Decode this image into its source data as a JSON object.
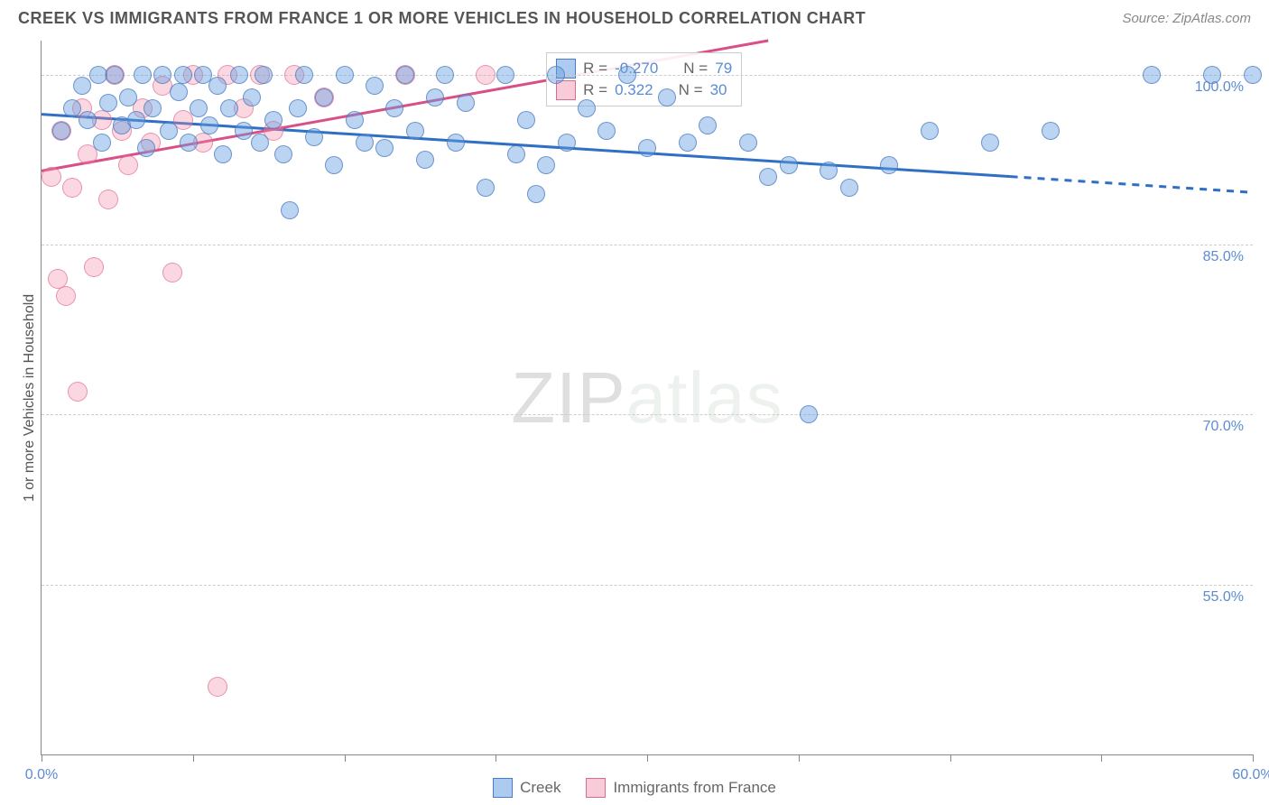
{
  "header": {
    "title": "CREEK VS IMMIGRANTS FROM FRANCE 1 OR MORE VEHICLES IN HOUSEHOLD CORRELATION CHART",
    "source": "Source: ZipAtlas.com"
  },
  "watermark": {
    "bold": "ZIP",
    "light": "atlas"
  },
  "axes": {
    "ylabel": "1 or more Vehicles in Household",
    "ylim": [
      40,
      103
    ],
    "y_ticks": [
      55.0,
      70.0,
      85.0,
      100.0
    ],
    "y_tick_labels": [
      "55.0%",
      "70.0%",
      "85.0%",
      "100.0%"
    ],
    "xlim": [
      0,
      60
    ],
    "x_ticks": [
      0,
      7.5,
      15,
      22.5,
      30,
      37.5,
      45,
      52.5,
      60
    ],
    "x_labels": [
      {
        "x": 0,
        "t": "0.0%"
      },
      {
        "x": 60,
        "t": "60.0%"
      }
    ]
  },
  "stats_legend": {
    "rows": [
      {
        "swatch": "blue",
        "r_label": "R =",
        "r": "-0.270",
        "n_label": "N =",
        "n": "79"
      },
      {
        "swatch": "pink",
        "r_label": "R =",
        "r": " 0.322",
        "n_label": "N =",
        "n": "30"
      }
    ]
  },
  "series_legend": {
    "items": [
      {
        "swatch": "blue",
        "label": "Creek"
      },
      {
        "swatch": "pink",
        "label": "Immigrants from France"
      }
    ]
  },
  "colors": {
    "blue_line": "#2f6fc4",
    "pink_line": "#d94f87",
    "grid": "#cccccc",
    "axis": "#888888",
    "tick_text": "#5b8bd4"
  },
  "lines": {
    "blue": {
      "x1": 0,
      "y1": 96.5,
      "x2": 48,
      "y2": 91.0,
      "x_dash_end": 60,
      "y_dash_end": 89.6
    },
    "pink": {
      "x1": 0,
      "y1": 91.5,
      "x2": 36,
      "y2": 103.0
    }
  },
  "series": {
    "creek": {
      "color": "blue",
      "marker_r": 10,
      "points": [
        [
          1,
          95
        ],
        [
          1.5,
          97
        ],
        [
          2,
          99
        ],
        [
          2.3,
          96
        ],
        [
          2.8,
          100
        ],
        [
          3,
          94
        ],
        [
          3.3,
          97.5
        ],
        [
          3.6,
          100
        ],
        [
          4,
          95.5
        ],
        [
          4.3,
          98
        ],
        [
          4.7,
          96
        ],
        [
          5,
          100
        ],
        [
          5.2,
          93.5
        ],
        [
          5.5,
          97
        ],
        [
          6,
          100
        ],
        [
          6.3,
          95
        ],
        [
          6.8,
          98.5
        ],
        [
          7,
          100
        ],
        [
          7.3,
          94
        ],
        [
          7.8,
          97
        ],
        [
          8,
          100
        ],
        [
          8.3,
          95.5
        ],
        [
          8.7,
          99
        ],
        [
          9,
          93
        ],
        [
          9.3,
          97
        ],
        [
          9.8,
          100
        ],
        [
          10,
          95
        ],
        [
          10.4,
          98
        ],
        [
          10.8,
          94
        ],
        [
          11,
          100
        ],
        [
          11.5,
          96
        ],
        [
          12,
          93
        ],
        [
          12.3,
          88
        ],
        [
          12.7,
          97
        ],
        [
          13,
          100
        ],
        [
          13.5,
          94.5
        ],
        [
          14,
          98
        ],
        [
          14.5,
          92
        ],
        [
          15,
          100
        ],
        [
          15.5,
          96
        ],
        [
          16,
          94
        ],
        [
          16.5,
          99
        ],
        [
          17,
          93.5
        ],
        [
          17.5,
          97
        ],
        [
          18,
          100
        ],
        [
          18.5,
          95
        ],
        [
          19,
          92.5
        ],
        [
          19.5,
          98
        ],
        [
          20,
          100
        ],
        [
          20.5,
          94
        ],
        [
          21,
          97.5
        ],
        [
          22,
          90
        ],
        [
          23,
          100
        ],
        [
          23.5,
          93
        ],
        [
          24,
          96
        ],
        [
          24.5,
          89.5
        ],
        [
          25,
          92
        ],
        [
          25.5,
          100
        ],
        [
          26,
          94
        ],
        [
          27,
          97
        ],
        [
          28,
          95
        ],
        [
          29,
          100
        ],
        [
          30,
          93.5
        ],
        [
          31,
          98
        ],
        [
          32,
          94
        ],
        [
          33,
          95.5
        ],
        [
          35,
          94
        ],
        [
          36,
          91
        ],
        [
          37,
          92
        ],
        [
          38,
          70
        ],
        [
          39,
          91.5
        ],
        [
          40,
          90
        ],
        [
          42,
          92
        ],
        [
          44,
          95
        ],
        [
          47,
          94
        ],
        [
          50,
          95
        ],
        [
          55,
          100
        ],
        [
          58,
          100
        ],
        [
          60,
          100
        ]
      ]
    },
    "france": {
      "color": "pink",
      "marker_r": 11,
      "points": [
        [
          0.5,
          91
        ],
        [
          0.8,
          82
        ],
        [
          1,
          95
        ],
        [
          1.2,
          80.5
        ],
        [
          1.5,
          90
        ],
        [
          1.8,
          72
        ],
        [
          2,
          97
        ],
        [
          2.3,
          93
        ],
        [
          2.6,
          83
        ],
        [
          3,
          96
        ],
        [
          3.3,
          89
        ],
        [
          3.6,
          100
        ],
        [
          4,
          95
        ],
        [
          4.3,
          92
        ],
        [
          5,
          97
        ],
        [
          5.4,
          94
        ],
        [
          6,
          99
        ],
        [
          6.5,
          82.5
        ],
        [
          7,
          96
        ],
        [
          7.5,
          100
        ],
        [
          8,
          94
        ],
        [
          8.7,
          46
        ],
        [
          9.2,
          100
        ],
        [
          10,
          97
        ],
        [
          10.8,
          100
        ],
        [
          11.5,
          95
        ],
        [
          12.5,
          100
        ],
        [
          14,
          98
        ],
        [
          18,
          100
        ],
        [
          22,
          100
        ]
      ]
    }
  }
}
